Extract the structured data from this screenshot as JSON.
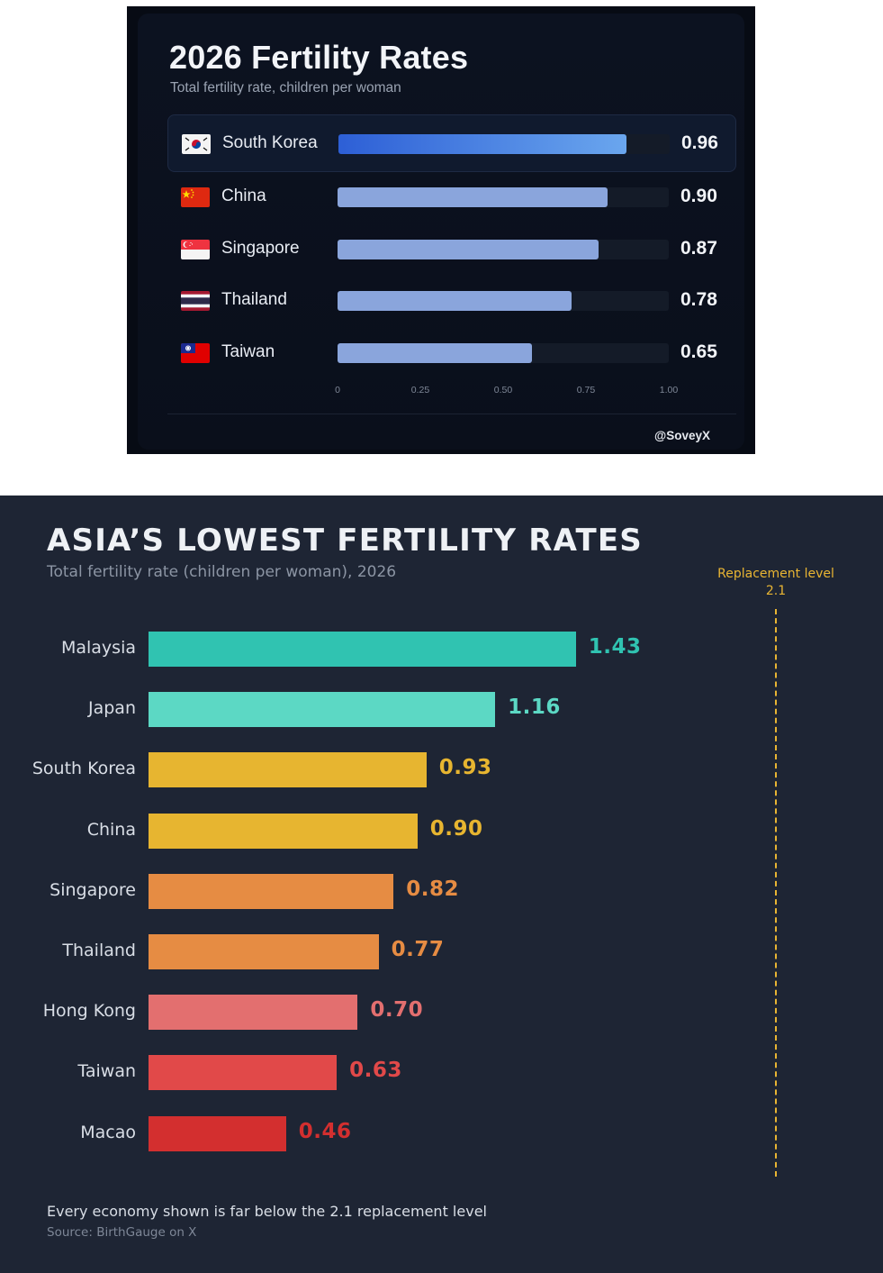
{
  "chart_data": [
    {
      "type": "bar",
      "orientation": "horizontal",
      "title": "2026 Fertility Rates",
      "subtitle": "Total fertility rate, children per woman",
      "categories": [
        "South Korea",
        "China",
        "Singapore",
        "Thailand",
        "Taiwan"
      ],
      "values": [
        0.96,
        0.9,
        0.87,
        0.78,
        0.65
      ],
      "value_labels": [
        "0.96",
        "0.90",
        "0.87",
        "0.78",
        "0.65"
      ],
      "highlighted": "South Korea",
      "xlim": [
        0,
        1.0
      ],
      "x_ticks": [
        0,
        0.25,
        0.5,
        0.75,
        1.0
      ],
      "x_tick_labels": [
        "0",
        "0.25",
        "0.50",
        "0.75",
        "1.00"
      ],
      "flags": [
        "south-korea-flag-icon",
        "china-flag-icon",
        "singapore-flag-icon",
        "thailand-flag-icon",
        "taiwan-flag-icon"
      ],
      "credit": "@SoveyX",
      "colors": {
        "bar": "#8aa5dc",
        "highlight_start": "#2d5fd6",
        "highlight_end": "#6aa6ee",
        "background": "#0a0f1b"
      }
    },
    {
      "type": "bar",
      "orientation": "horizontal",
      "title": "ASIA’S LOWEST FERTILITY RATES",
      "subtitle": "Total fertility rate (children per woman), 2026",
      "categories": [
        "Malaysia",
        "Japan",
        "South Korea",
        "China",
        "Singapore",
        "Thailand",
        "Hong Kong",
        "Taiwan",
        "Macao"
      ],
      "values": [
        1.43,
        1.16,
        0.93,
        0.9,
        0.82,
        0.77,
        0.7,
        0.63,
        0.46
      ],
      "value_labels": [
        "1.43",
        "1.16",
        "0.93",
        "0.90",
        "0.82",
        "0.77",
        "0.70",
        "0.63",
        "0.46"
      ],
      "colors": [
        "#30c3b1",
        "#5cd8c4",
        "#e7b530",
        "#e7b530",
        "#e68c43",
        "#e68c43",
        "#e36f6f",
        "#e14949",
        "#d32f2f"
      ],
      "reference_line": {
        "value": 2.1,
        "label": "Replacement level",
        "value_label": "2.1",
        "color": "#e9b533",
        "style": "dashed"
      },
      "xlim": [
        0,
        2.1
      ],
      "grid": false,
      "note": "Every economy shown is far below the 2.1 replacement level",
      "source": "Source: BirthGauge on X",
      "background": "#1e2534"
    }
  ]
}
